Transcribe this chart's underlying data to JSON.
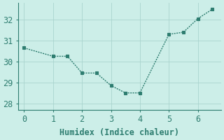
{
  "x": [
    0,
    1,
    1.5,
    2,
    2.5,
    3,
    3.5,
    4,
    5,
    5.5,
    6,
    6.5
  ],
  "y": [
    30.65,
    30.25,
    30.25,
    29.45,
    29.45,
    28.85,
    28.5,
    28.5,
    31.3,
    31.4,
    32.05,
    32.5
  ],
  "line_color": "#2e7d70",
  "bg_color": "#cceee8",
  "grid_color": "#aad4ce",
  "xlabel": "Humidex (Indice chaleur)",
  "xlim": [
    -0.2,
    6.8
  ],
  "ylim": [
    27.7,
    32.8
  ],
  "xticks": [
    0,
    1,
    2,
    3,
    4,
    5,
    6
  ],
  "yticks": [
    28,
    29,
    30,
    31,
    32
  ],
  "font_size": 8.5,
  "marker": "s",
  "marker_size": 2.5,
  "linewidth": 1.0
}
